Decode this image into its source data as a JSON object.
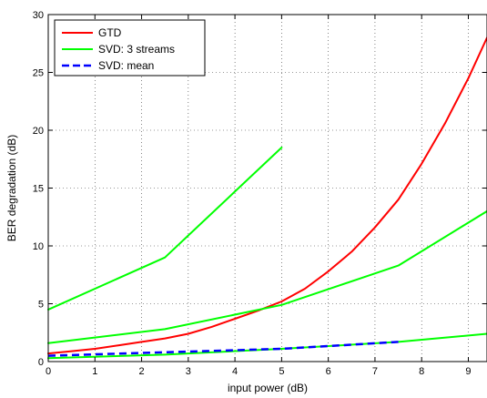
{
  "chart_data": {
    "type": "line",
    "title": "",
    "xlabel": "input power (dB)",
    "ylabel": "BER degradation (dB)",
    "xlim": [
      0,
      9.4
    ],
    "ylim": [
      0,
      30
    ],
    "x_ticks": [
      0,
      1,
      2,
      3,
      4,
      5,
      6,
      7,
      8,
      9
    ],
    "y_ticks": [
      0,
      5,
      10,
      15,
      20,
      25,
      30
    ],
    "grid": true,
    "legend_position": "top-left",
    "legend": [
      {
        "label": "GTD",
        "color": "#ff0000",
        "dash": false
      },
      {
        "label": "SVD: 3 streams",
        "color": "#00ff00",
        "dash": false
      },
      {
        "label": "SVD: mean",
        "color": "#0000ff",
        "dash": true
      }
    ],
    "series": [
      {
        "legend_index": 0,
        "color": "#ff0000",
        "dash": false,
        "x": [
          0,
          0.5,
          1,
          1.5,
          2,
          2.5,
          3,
          3.5,
          4,
          4.5,
          5,
          5.5,
          6,
          6.5,
          7,
          7.5,
          8,
          8.5,
          9,
          9.4
        ],
        "y": [
          0.7,
          0.9,
          1.1,
          1.4,
          1.7,
          2.0,
          2.4,
          3.0,
          3.7,
          4.4,
          5.2,
          6.3,
          7.8,
          9.5,
          11.6,
          14.0,
          17.1,
          20.6,
          24.5,
          28.0
        ]
      },
      {
        "legend_index": 1,
        "color": "#00ff00",
        "dash": false,
        "x": [
          0,
          2.5,
          5
        ],
        "y": [
          4.5,
          9.0,
          18.5
        ]
      },
      {
        "legend_index": 1,
        "color": "#00ff00",
        "dash": false,
        "x": [
          0,
          2.5,
          5,
          7.5,
          9.4
        ],
        "y": [
          1.6,
          2.8,
          4.9,
          8.3,
          13.0
        ]
      },
      {
        "legend_index": 1,
        "color": "#00ff00",
        "dash": false,
        "x": [
          0,
          2.5,
          5,
          7.5,
          9.4
        ],
        "y": [
          0.3,
          0.6,
          1.1,
          1.7,
          2.4
        ]
      },
      {
        "legend_index": 2,
        "color": "#0000ff",
        "dash": true,
        "x": [
          0,
          2.5,
          5,
          7.5
        ],
        "y": [
          0.5,
          0.8,
          1.1,
          1.7
        ]
      }
    ]
  }
}
